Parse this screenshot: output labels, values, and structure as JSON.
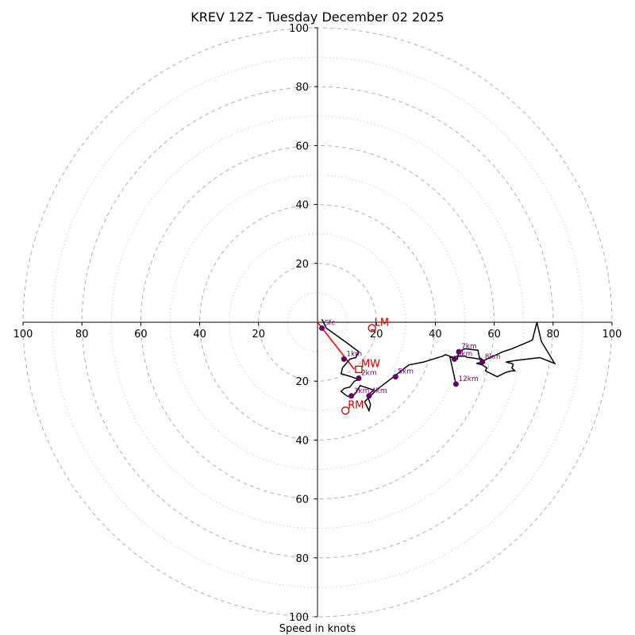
{
  "chart_data": {
    "type": "hodograph",
    "title": "KREV 12Z - Tuesday December 02 2025",
    "xlabel": "Speed in knots",
    "max_speed": 100,
    "ring_major_values": [
      20,
      40,
      60,
      80,
      100
    ],
    "ring_minor_values": [
      10,
      30,
      50,
      70,
      90
    ],
    "tick_values": [
      20,
      40,
      60,
      80,
      100
    ],
    "x_tick_labels": [
      "100",
      "80",
      "60",
      "40",
      "20",
      "20",
      "40",
      "60",
      "80",
      "100"
    ],
    "y_tick_labels": [
      "100",
      "80",
      "60",
      "40",
      "20",
      "20",
      "40",
      "60",
      "80",
      "100"
    ],
    "trace_uv": [
      [
        1.5,
        1
      ],
      [
        3,
        -2
      ],
      [
        10,
        -7
      ],
      [
        14,
        -10
      ],
      [
        13,
        -12
      ],
      [
        11,
        -12.5
      ],
      [
        8.5,
        -15.5
      ],
      [
        8,
        -17.5
      ],
      [
        11.5,
        -18.5
      ],
      [
        14,
        -19.5
      ],
      [
        12.5,
        -20
      ],
      [
        11,
        -22
      ],
      [
        9,
        -22.5
      ],
      [
        8,
        -23.5
      ],
      [
        10,
        -25
      ],
      [
        11.5,
        -25.5
      ],
      [
        13,
        -24
      ],
      [
        14.5,
        -21.5
      ],
      [
        19,
        -23
      ],
      [
        17,
        -25
      ],
      [
        18,
        -28
      ],
      [
        17.5,
        -30
      ],
      [
        16,
        -27
      ],
      [
        17.5,
        -25.5
      ],
      [
        20,
        -23
      ],
      [
        26.5,
        -18
      ],
      [
        31,
        -14.5
      ],
      [
        36,
        -13.5
      ],
      [
        42.5,
        -11.5
      ],
      [
        43.5,
        -11
      ],
      [
        47.5,
        -12.5
      ],
      [
        48,
        -10
      ],
      [
        50,
        -9
      ],
      [
        54.5,
        -9.5
      ],
      [
        55,
        -12
      ],
      [
        56.5,
        -13
      ],
      [
        63,
        -10
      ],
      [
        66,
        -9
      ],
      [
        72,
        -6.5
      ],
      [
        73,
        -6
      ],
      [
        74.5,
        0
      ],
      [
        76,
        -6.5
      ],
      [
        80.5,
        -14
      ],
      [
        75.5,
        -12
      ],
      [
        67,
        -13
      ],
      [
        64,
        -13.5
      ],
      [
        66,
        -14
      ],
      [
        66.5,
        -14.5
      ],
      [
        66,
        -15.5
      ],
      [
        67,
        -16.5
      ],
      [
        66,
        -16.5
      ],
      [
        64,
        -17
      ],
      [
        61,
        -18.5
      ],
      [
        57,
        -16.5
      ],
      [
        57.5,
        -15.5
      ],
      [
        56,
        -14.5
      ],
      [
        54,
        -14
      ],
      [
        56,
        -13.5
      ],
      [
        55,
        -12.5
      ],
      [
        52,
        -12
      ],
      [
        51,
        -12
      ],
      [
        50,
        -11.5
      ],
      [
        47.5,
        -11.5
      ],
      [
        45,
        -12
      ],
      [
        47,
        -21
      ]
    ],
    "height_markers": [
      {
        "label": "Sfc",
        "u": 1.5,
        "v": -2
      },
      {
        "label": "1km",
        "u": 9,
        "v": -12.5
      },
      {
        "label": "2km",
        "u": 14,
        "v": -19
      },
      {
        "label": "3km",
        "u": 11.5,
        "v": -25
      },
      {
        "label": "4km",
        "u": 17.5,
        "v": -25
      },
      {
        "label": "5km",
        "u": 26.5,
        "v": -18.5
      },
      {
        "label": "6km",
        "u": 46.5,
        "v": -12.5
      },
      {
        "label": "7km",
        "u": 48,
        "v": -10
      },
      {
        "label": "8km",
        "u": 56,
        "v": -13.5
      },
      {
        "label": "12km",
        "u": 47,
        "v": -21
      }
    ],
    "shear_vector": {
      "from": [
        0,
        0
      ],
      "to": [
        12.5,
        -16
      ]
    },
    "storm_motions": [
      {
        "label": "LM",
        "u": 18.5,
        "v": -2,
        "marker": "circle"
      },
      {
        "label": "MW",
        "u": 14,
        "v": -16,
        "marker": "square"
      },
      {
        "label": "RM",
        "u": 9.5,
        "v": -30,
        "marker": "circle"
      }
    ]
  }
}
